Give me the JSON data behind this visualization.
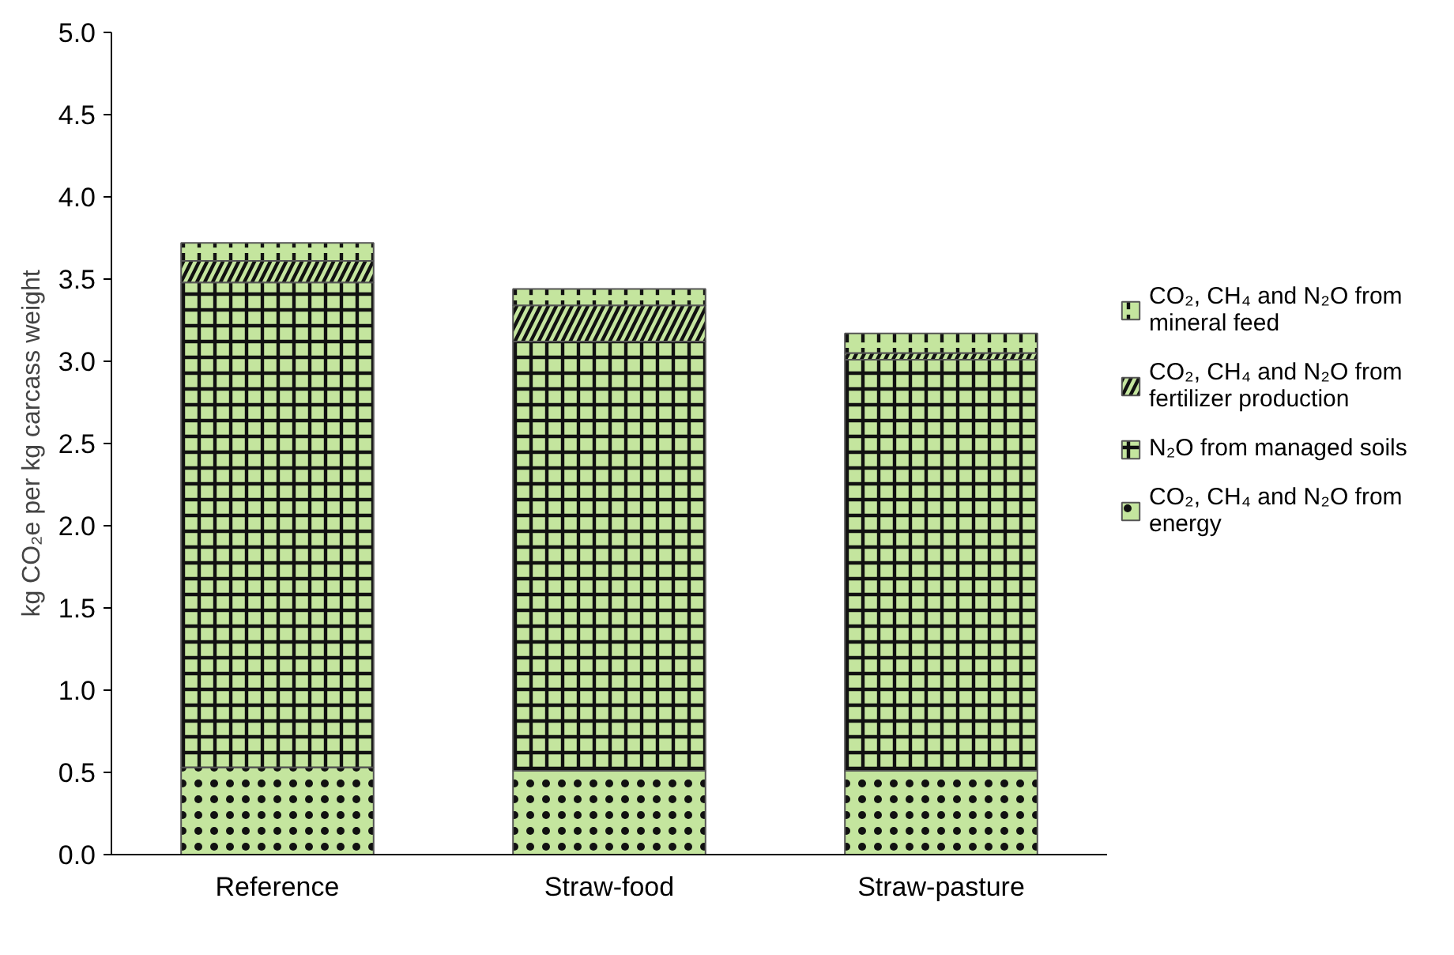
{
  "chart_data": {
    "type": "bar",
    "stacked": true,
    "ylabel": "kg CO₂e per kg carcass weight",
    "categories": [
      "Reference",
      "Straw-food",
      "Straw-pasture"
    ],
    "series": [
      {
        "name": "CO₂, CH₄ and N₂O from energy",
        "color": "#c4e59e",
        "values": [
          0.53,
          0.51,
          0.51
        ]
      },
      {
        "name": "N₂O from managed soils",
        "color": "#c4e59e",
        "values": [
          2.95,
          2.61,
          2.5
        ]
      },
      {
        "name": "CO₂, CH₄ and N₂O from fertilizer production",
        "color": "#c4e59e",
        "values": [
          0.13,
          0.22,
          0.04
        ]
      },
      {
        "name": "CO₂, CH₄ and N₂O from mineral feed",
        "color": "#c4e59e",
        "values": [
          0.11,
          0.1,
          0.12
        ]
      }
    ],
    "ylim": [
      0,
      5
    ],
    "yticks": [
      {
        "value": 0,
        "label": "0.0"
      },
      {
        "value": 0.5,
        "label": "0.5"
      },
      {
        "value": 1,
        "label": "1.0"
      },
      {
        "value": 1.5,
        "label": "1.5"
      },
      {
        "value": 2,
        "label": "2.0"
      },
      {
        "value": 2.5,
        "label": "2.5"
      },
      {
        "value": 3,
        "label": "3.0"
      },
      {
        "value": 3.5,
        "label": "3.5"
      },
      {
        "value": 4,
        "label": "4.0"
      },
      {
        "value": 4.5,
        "label": "4.5"
      },
      {
        "value": 5,
        "label": "5.0"
      }
    ],
    "grid": false,
    "legend": "right"
  }
}
